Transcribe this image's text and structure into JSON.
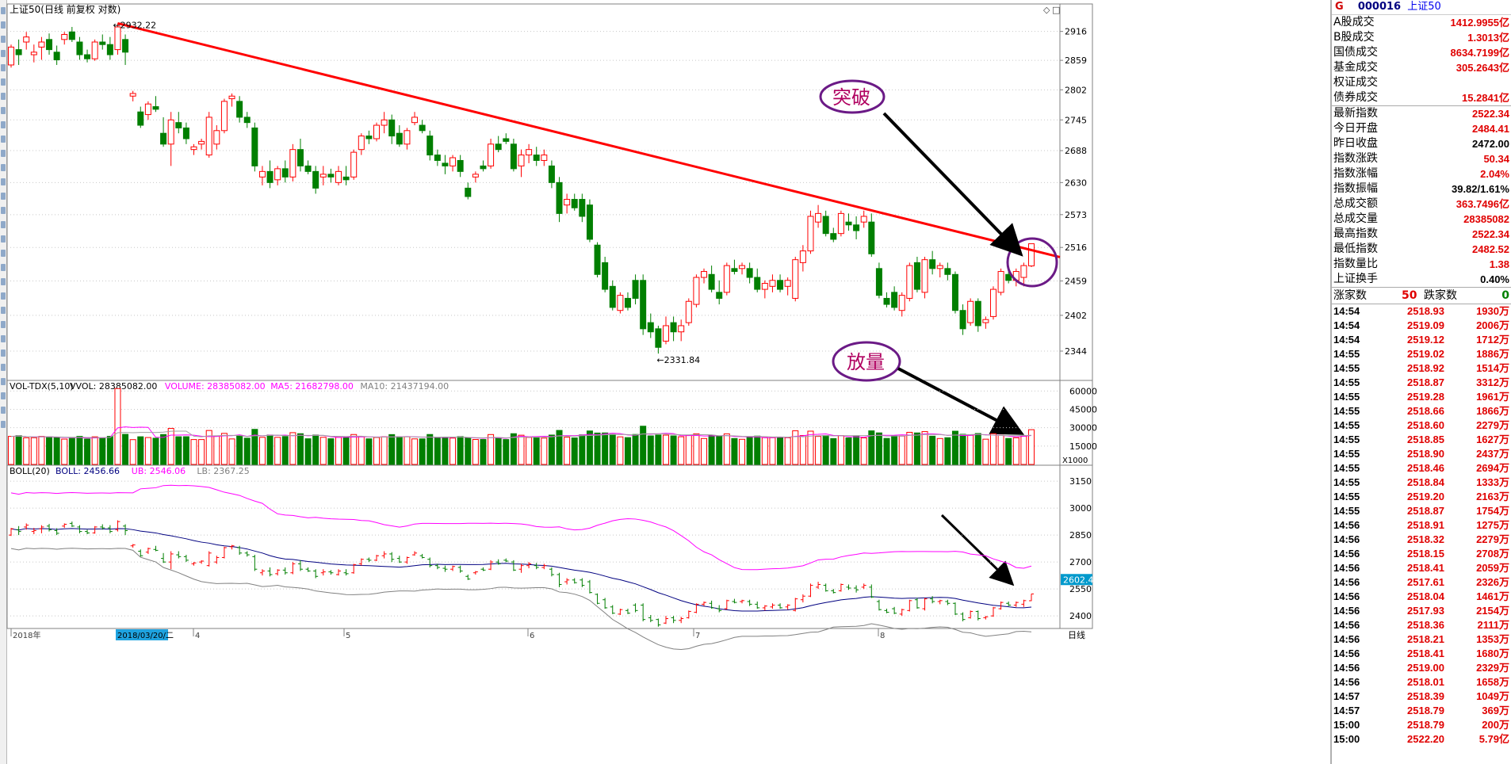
{
  "app": {
    "title": "上证50(日线 前复权 对数)",
    "period_label": "日线",
    "date_highlight": "2018/03/20/二"
  },
  "colors": {
    "up": "#ff0000",
    "down": "#007f00",
    "trend": "#ff0000",
    "ub": "#ff00ff",
    "mid": "#000080",
    "lb": "#808080",
    "ma5": "#ff00ff",
    "ma10": "#a0a0a0",
    "annotation": "#6b1a86"
  },
  "icons": {
    "window_controls": [
      "restore-icon",
      "close-icon"
    ]
  },
  "chart_data": [
    {
      "type": "candlestick",
      "title": "上证50(日线 前复权 对数)",
      "y_scale": "log",
      "ylim": [
        2300,
        2960
      ],
      "y_ticks": [
        2916,
        2859,
        2802,
        2745,
        2688,
        2630,
        2573,
        2516,
        2459,
        2402,
        2344
      ],
      "x_ticks": [
        "2018年",
        "2018/03/20/二",
        "4",
        "5",
        "6",
        "7",
        "8"
      ],
      "high_label": "2932.22",
      "low_label": "2331.84",
      "ohlc": [
        [
          2850,
          2890,
          2845,
          2885
        ],
        [
          2880,
          2900,
          2850,
          2870
        ],
        [
          2895,
          2915,
          2880,
          2905
        ],
        [
          2870,
          2890,
          2855,
          2875
        ],
        [
          2885,
          2905,
          2860,
          2895
        ],
        [
          2900,
          2912,
          2870,
          2880
        ],
        [
          2875,
          2888,
          2850,
          2860
        ],
        [
          2900,
          2915,
          2890,
          2910
        ],
        [
          2915,
          2925,
          2895,
          2900
        ],
        [
          2895,
          2905,
          2860,
          2870
        ],
        [
          2870,
          2880,
          2855,
          2862
        ],
        [
          2862,
          2900,
          2858,
          2895
        ],
        [
          2895,
          2910,
          2880,
          2890
        ],
        [
          2890,
          2905,
          2860,
          2870
        ],
        [
          2880,
          2932,
          2870,
          2925
        ],
        [
          2900,
          2910,
          2850,
          2875
        ],
        [
          2790,
          2800,
          2780,
          2795
        ],
        [
          2760,
          2770,
          2730,
          2735
        ],
        [
          2755,
          2780,
          2745,
          2775
        ],
        [
          2770,
          2790,
          2760,
          2765
        ],
        [
          2720,
          2750,
          2695,
          2700
        ],
        [
          2700,
          2760,
          2660,
          2745
        ],
        [
          2740,
          2760,
          2720,
          2730
        ],
        [
          2730,
          2740,
          2700,
          2710
        ],
        [
          2690,
          2700,
          2680,
          2695
        ],
        [
          2700,
          2710,
          2690,
          2705
        ],
        [
          2680,
          2760,
          2675,
          2750
        ],
        [
          2700,
          2735,
          2690,
          2725
        ],
        [
          2725,
          2785,
          2720,
          2780
        ],
        [
          2785,
          2795,
          2770,
          2790
        ],
        [
          2780,
          2790,
          2740,
          2750
        ],
        [
          2750,
          2760,
          2730,
          2740
        ],
        [
          2730,
          2740,
          2650,
          2660
        ],
        [
          2640,
          2660,
          2625,
          2650
        ],
        [
          2650,
          2670,
          2620,
          2630
        ],
        [
          2635,
          2660,
          2625,
          2655
        ],
        [
          2655,
          2670,
          2630,
          2640
        ],
        [
          2640,
          2700,
          2632,
          2690
        ],
        [
          2690,
          2710,
          2650,
          2660
        ],
        [
          2660,
          2670,
          2645,
          2650
        ],
        [
          2650,
          2660,
          2610,
          2620
        ],
        [
          2640,
          2660,
          2625,
          2645
        ],
        [
          2645,
          2655,
          2630,
          2640
        ],
        [
          2630,
          2660,
          2625,
          2650
        ],
        [
          2640,
          2660,
          2625,
          2635
        ],
        [
          2640,
          2690,
          2635,
          2685
        ],
        [
          2690,
          2720,
          2680,
          2715
        ],
        [
          2715,
          2725,
          2700,
          2710
        ],
        [
          2710,
          2740,
          2705,
          2735
        ],
        [
          2735,
          2760,
          2720,
          2745
        ],
        [
          2745,
          2755,
          2700,
          2715
        ],
        [
          2720,
          2735,
          2695,
          2700
        ],
        [
          2700,
          2730,
          2690,
          2725
        ],
        [
          2740,
          2760,
          2735,
          2750
        ],
        [
          2735,
          2745,
          2720,
          2725
        ],
        [
          2715,
          2725,
          2670,
          2680
        ],
        [
          2680,
          2690,
          2660,
          2670
        ],
        [
          2665,
          2680,
          2645,
          2660
        ],
        [
          2660,
          2680,
          2650,
          2675
        ],
        [
          2670,
          2680,
          2640,
          2650
        ],
        [
          2620,
          2630,
          2600,
          2605
        ],
        [
          2640,
          2650,
          2630,
          2645
        ],
        [
          2660,
          2670,
          2650,
          2655
        ],
        [
          2660,
          2710,
          2655,
          2700
        ],
        [
          2700,
          2715,
          2685,
          2690
        ],
        [
          2710,
          2720,
          2700,
          2705
        ],
        [
          2700,
          2710,
          2650,
          2655
        ],
        [
          2660,
          2690,
          2640,
          2680
        ],
        [
          2680,
          2700,
          2665,
          2690
        ],
        [
          2680,
          2695,
          2660,
          2670
        ],
        [
          2670,
          2690,
          2660,
          2680
        ],
        [
          2660,
          2670,
          2620,
          2630
        ],
        [
          2630,
          2640,
          2560,
          2575
        ],
        [
          2590,
          2610,
          2575,
          2600
        ],
        [
          2600,
          2610,
          2580,
          2585
        ],
        [
          2600,
          2610,
          2560,
          2570
        ],
        [
          2590,
          2600,
          2525,
          2530
        ],
        [
          2520,
          2525,
          2465,
          2470
        ],
        [
          2490,
          2500,
          2440,
          2445
        ],
        [
          2450,
          2460,
          2410,
          2415
        ],
        [
          2410,
          2440,
          2405,
          2435
        ],
        [
          2430,
          2440,
          2410,
          2415
        ],
        [
          2460,
          2470,
          2420,
          2430
        ],
        [
          2460,
          2470,
          2370,
          2380
        ],
        [
          2390,
          2405,
          2365,
          2375
        ],
        [
          2380,
          2385,
          2340,
          2350
        ],
        [
          2360,
          2400,
          2355,
          2385
        ],
        [
          2390,
          2400,
          2360,
          2375
        ],
        [
          2375,
          2395,
          2360,
          2385
        ],
        [
          2390,
          2430,
          2385,
          2425
        ],
        [
          2420,
          2470,
          2415,
          2465
        ],
        [
          2465,
          2480,
          2455,
          2475
        ],
        [
          2470,
          2485,
          2440,
          2445
        ],
        [
          2440,
          2460,
          2420,
          2430
        ],
        [
          2440,
          2490,
          2435,
          2485
        ],
        [
          2480,
          2495,
          2470,
          2475
        ],
        [
          2480,
          2490,
          2470,
          2485
        ],
        [
          2480,
          2490,
          2455,
          2465
        ],
        [
          2465,
          2480,
          2440,
          2445
        ],
        [
          2445,
          2460,
          2430,
          2455
        ],
        [
          2450,
          2470,
          2440,
          2460
        ],
        [
          2460,
          2470,
          2440,
          2445
        ],
        [
          2450,
          2465,
          2435,
          2460
        ],
        [
          2430,
          2500,
          2425,
          2495
        ],
        [
          2490,
          2520,
          2475,
          2510
        ],
        [
          2510,
          2580,
          2505,
          2570
        ],
        [
          2560,
          2590,
          2550,
          2575
        ],
        [
          2570,
          2580,
          2535,
          2540
        ],
        [
          2540,
          2550,
          2525,
          2530
        ],
        [
          2540,
          2580,
          2535,
          2575
        ],
        [
          2560,
          2575,
          2545,
          2555
        ],
        [
          2555,
          2570,
          2530,
          2545
        ],
        [
          2560,
          2580,
          2550,
          2570
        ],
        [
          2560,
          2575,
          2500,
          2505
        ],
        [
          2480,
          2490,
          2430,
          2435
        ],
        [
          2430,
          2440,
          2415,
          2420
        ],
        [
          2440,
          2450,
          2410,
          2415
        ],
        [
          2410,
          2440,
          2400,
          2435
        ],
        [
          2430,
          2490,
          2425,
          2485
        ],
        [
          2490,
          2500,
          2440,
          2445
        ],
        [
          2440,
          2500,
          2430,
          2495
        ],
        [
          2495,
          2510,
          2470,
          2480
        ],
        [
          2480,
          2490,
          2465,
          2485
        ],
        [
          2480,
          2490,
          2460,
          2470
        ],
        [
          2470,
          2475,
          2405,
          2410
        ],
        [
          2410,
          2420,
          2370,
          2380
        ],
        [
          2390,
          2430,
          2385,
          2425
        ],
        [
          2425,
          2430,
          2375,
          2385
        ],
        [
          2390,
          2400,
          2380,
          2395
        ],
        [
          2400,
          2450,
          2395,
          2445
        ],
        [
          2440,
          2480,
          2435,
          2475
        ],
        [
          2470,
          2480,
          2455,
          2460
        ],
        [
          2460,
          2480,
          2450,
          2475
        ],
        [
          2465,
          2490,
          2450,
          2485
        ],
        [
          2484.41,
          2522.34,
          2482.52,
          2522.34
        ]
      ],
      "trendline": {
        "from": {
          "index": 14,
          "price": 2932.22
        },
        "to": {
          "index": 136,
          "price": 2505
        }
      },
      "annotations": [
        "突破",
        "放量"
      ]
    },
    {
      "type": "bar",
      "title": "VOL-TDX(5,10)",
      "legend": [
        {
          "label": "VVOL: 28385082.00",
          "color": "#000000"
        },
        {
          "label": "VOLUME: 28385082.00",
          "color": "#ff00ff"
        },
        {
          "label": "MA5: 21682798.00",
          "color": "#ff00ff"
        },
        {
          "label": "MA10: 21437194.00",
          "color": "#808080"
        }
      ],
      "y_ticks": [
        60000,
        45000,
        30000,
        15000
      ],
      "unit_label": "X1000",
      "ylim": [
        0,
        68000
      ]
    },
    {
      "type": "line",
      "title": "BOLL(20)",
      "legend": [
        {
          "label": "BOLL: 2456.66",
          "color": "#000080"
        },
        {
          "label": "UB: 2546.06",
          "color": "#ff00ff"
        },
        {
          "label": "LB: 2367.25",
          "color": "#808080"
        }
      ],
      "y_ticks": [
        3150,
        3000,
        2850,
        2700,
        2550,
        2400
      ],
      "ylim": [
        2330,
        3230
      ],
      "current_price_label": "2602.4"
    }
  ],
  "quote_panel": {
    "tag": "G",
    "code": "000016",
    "name": "上证50",
    "rows": [
      {
        "k": "A股成交",
        "v": "1412.9955亿",
        "c": "up"
      },
      {
        "k": "B股成交",
        "v": "1.3013亿",
        "c": "up"
      },
      {
        "k": "国债成交",
        "v": "8634.7199亿",
        "c": "up"
      },
      {
        "k": "基金成交",
        "v": "305.2643亿",
        "c": "up"
      },
      {
        "k": "权证成交",
        "v": "",
        "c": "up"
      },
      {
        "k": "债券成交",
        "v": "15.2841亿",
        "c": "up"
      },
      {
        "k": "最新指数",
        "v": "2522.34",
        "c": "up"
      },
      {
        "k": "今日开盘",
        "v": "2484.41",
        "c": "up"
      },
      {
        "k": "昨日收盘",
        "v": "2472.00",
        "c": "blk"
      },
      {
        "k": "指数涨跌",
        "v": "50.34",
        "c": "up"
      },
      {
        "k": "指数涨幅",
        "v": "2.04%",
        "c": "up"
      },
      {
        "k": "指数振幅",
        "v": "39.82/1.61%",
        "c": "blk"
      },
      {
        "k": "总成交额",
        "v": "363.7496亿",
        "c": "up"
      },
      {
        "k": "总成交量",
        "v": "28385082",
        "c": "up"
      },
      {
        "k": "最高指数",
        "v": "2522.34",
        "c": "up"
      },
      {
        "k": "最低指数",
        "v": "2482.52",
        "c": "up"
      },
      {
        "k": "指数量比",
        "v": "1.38",
        "c": "up"
      },
      {
        "k": "上证换手",
        "v": "0.40%",
        "c": "blk"
      }
    ],
    "up_label": "涨家数",
    "up_count": "50",
    "down_label": "跌家数",
    "down_count": "0",
    "ticks": [
      {
        "t": "14:54",
        "p": "2518.93",
        "v": "1930万"
      },
      {
        "t": "14:54",
        "p": "2519.09",
        "v": "2006万"
      },
      {
        "t": "14:54",
        "p": "2519.12",
        "v": "1712万"
      },
      {
        "t": "14:55",
        "p": "2519.02",
        "v": "1886万"
      },
      {
        "t": "14:55",
        "p": "2518.92",
        "v": "1514万"
      },
      {
        "t": "14:55",
        "p": "2518.87",
        "v": "3312万"
      },
      {
        "t": "14:55",
        "p": "2519.28",
        "v": "1961万"
      },
      {
        "t": "14:55",
        "p": "2518.66",
        "v": "1866万"
      },
      {
        "t": "14:55",
        "p": "2518.60",
        "v": "2279万"
      },
      {
        "t": "14:55",
        "p": "2518.85",
        "v": "1627万"
      },
      {
        "t": "14:55",
        "p": "2518.90",
        "v": "2437万"
      },
      {
        "t": "14:55",
        "p": "2518.46",
        "v": "2694万"
      },
      {
        "t": "14:55",
        "p": "2518.84",
        "v": "1333万"
      },
      {
        "t": "14:55",
        "p": "2519.20",
        "v": "2163万"
      },
      {
        "t": "14:55",
        "p": "2518.87",
        "v": "1754万"
      },
      {
        "t": "14:56",
        "p": "2518.91",
        "v": "1275万"
      },
      {
        "t": "14:56",
        "p": "2518.32",
        "v": "2279万"
      },
      {
        "t": "14:56",
        "p": "2518.15",
        "v": "2708万"
      },
      {
        "t": "14:56",
        "p": "2518.41",
        "v": "2059万"
      },
      {
        "t": "14:56",
        "p": "2517.61",
        "v": "2326万"
      },
      {
        "t": "14:56",
        "p": "2518.04",
        "v": "1461万"
      },
      {
        "t": "14:56",
        "p": "2517.93",
        "v": "2154万"
      },
      {
        "t": "14:56",
        "p": "2518.36",
        "v": "2111万"
      },
      {
        "t": "14:56",
        "p": "2518.21",
        "v": "1353万"
      },
      {
        "t": "14:56",
        "p": "2518.41",
        "v": "1680万"
      },
      {
        "t": "14:56",
        "p": "2519.00",
        "v": "2329万"
      },
      {
        "t": "14:56",
        "p": "2518.01",
        "v": "1658万"
      },
      {
        "t": "14:57",
        "p": "2518.39",
        "v": "1049万"
      },
      {
        "t": "14:57",
        "p": "2518.79",
        "v": "369万"
      },
      {
        "t": "15:00",
        "p": "2518.79",
        "v": "200万"
      },
      {
        "t": "15:00",
        "p": "2522.20",
        "v": "5.79亿"
      }
    ]
  }
}
